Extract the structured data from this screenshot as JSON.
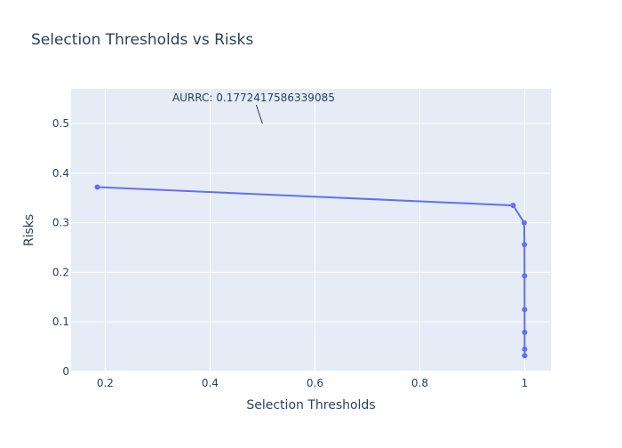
{
  "chart_data": {
    "type": "line",
    "title": "Selection Thresholds vs Risks",
    "xlabel": "Selection Thresholds",
    "ylabel": "Risks",
    "xlim": [
      0.135,
      1.05
    ],
    "ylim": [
      0,
      0.57
    ],
    "x_ticks": [
      0.2,
      0.4,
      0.6,
      0.8,
      1
    ],
    "x_tick_labels": [
      "0.2",
      "0.4",
      "0.6",
      "0.8",
      "1"
    ],
    "y_ticks": [
      0,
      0.1,
      0.2,
      0.3,
      0.4,
      0.5
    ],
    "y_tick_labels": [
      "0",
      "0.1",
      "0.2",
      "0.3",
      "0.4",
      "0.5"
    ],
    "grid": true,
    "line_color": "#636efa",
    "plot_background": "#e5ecf6",
    "series": [
      {
        "x": [
          0.185,
          0.978,
          0.999,
          0.9995,
          0.9997,
          0.9998,
          0.9999,
          0.99995,
          0.99998
        ],
        "y": [
          0.372,
          0.335,
          0.3,
          0.256,
          0.193,
          0.125,
          0.079,
          0.045,
          0.032
        ]
      }
    ],
    "annotation": {
      "text": "AURRC: 0.1772417586339085",
      "x": 0.5,
      "y": 0.5
    }
  }
}
